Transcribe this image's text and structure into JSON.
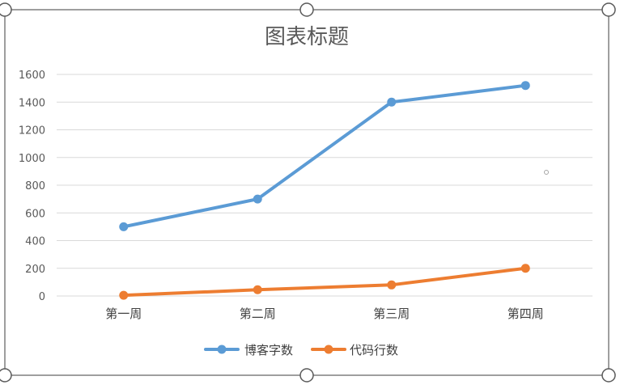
{
  "chart_data": {
    "type": "line",
    "title": "图表标题",
    "categories": [
      "第一周",
      "第二周",
      "第三周",
      "第四周"
    ],
    "series": [
      {
        "name": "博客字数",
        "values": [
          500,
          700,
          1400,
          1520
        ],
        "color": "#5B9BD5"
      },
      {
        "name": "代码行数",
        "values": [
          5,
          45,
          80,
          200
        ],
        "color": "#ED7D31"
      }
    ],
    "ylim": [
      0,
      1600
    ],
    "yticks": [
      0,
      200,
      400,
      600,
      800,
      1000,
      1200,
      1400,
      1600
    ],
    "grid": true,
    "legend": "bottom"
  }
}
